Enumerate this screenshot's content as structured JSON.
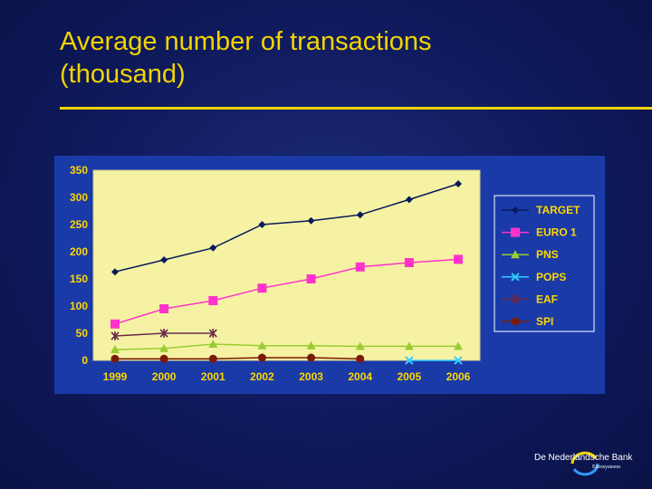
{
  "slide": {
    "title_line1": "Average number of transactions",
    "title_line2": "(thousand)"
  },
  "brand": {
    "name": "De Nederlandsche Bank",
    "sub": "Eurosysteem"
  },
  "colors": {
    "background": "#0f1a5c",
    "title": "#f2d400",
    "panel": "#1a3aa8",
    "plot_area": "#f5f3a3",
    "legend_bg": "#1a3aa8"
  },
  "chart_data": {
    "type": "line",
    "title": "",
    "xlabel": "",
    "ylabel": "",
    "categories": [
      "1999",
      "2000",
      "2001",
      "2002",
      "2003",
      "2004",
      "2005",
      "2006"
    ],
    "ylim": [
      0,
      350
    ],
    "yticks": [
      0,
      50,
      100,
      150,
      200,
      250,
      300,
      350
    ],
    "grid": false,
    "legend_position": "right",
    "series": [
      {
        "name": "TARGET",
        "color": "#0a1a5a",
        "marker": "diamond",
        "values": [
          163,
          185,
          207,
          250,
          257,
          268,
          296,
          325
        ]
      },
      {
        "name": "EURO 1",
        "color": "#ff33cc",
        "marker": "square",
        "values": [
          67,
          95,
          110,
          133,
          150,
          172,
          180,
          186
        ]
      },
      {
        "name": "PNS",
        "color": "#99cc33",
        "marker": "triangle",
        "values": [
          20,
          22,
          30,
          27,
          27,
          26,
          26,
          26
        ]
      },
      {
        "name": "POPS",
        "color": "#33ccff",
        "marker": "x",
        "values": [
          null,
          null,
          null,
          null,
          null,
          null,
          0,
          0
        ]
      },
      {
        "name": "EAF",
        "color": "#6a2a4a",
        "marker": "star",
        "values": [
          45,
          50,
          50,
          null,
          null,
          null,
          null,
          null
        ]
      },
      {
        "name": "SPI",
        "color": "#7a1a0a",
        "marker": "circle",
        "values": [
          3,
          3,
          3,
          5,
          5,
          3,
          null,
          null
        ]
      }
    ]
  }
}
